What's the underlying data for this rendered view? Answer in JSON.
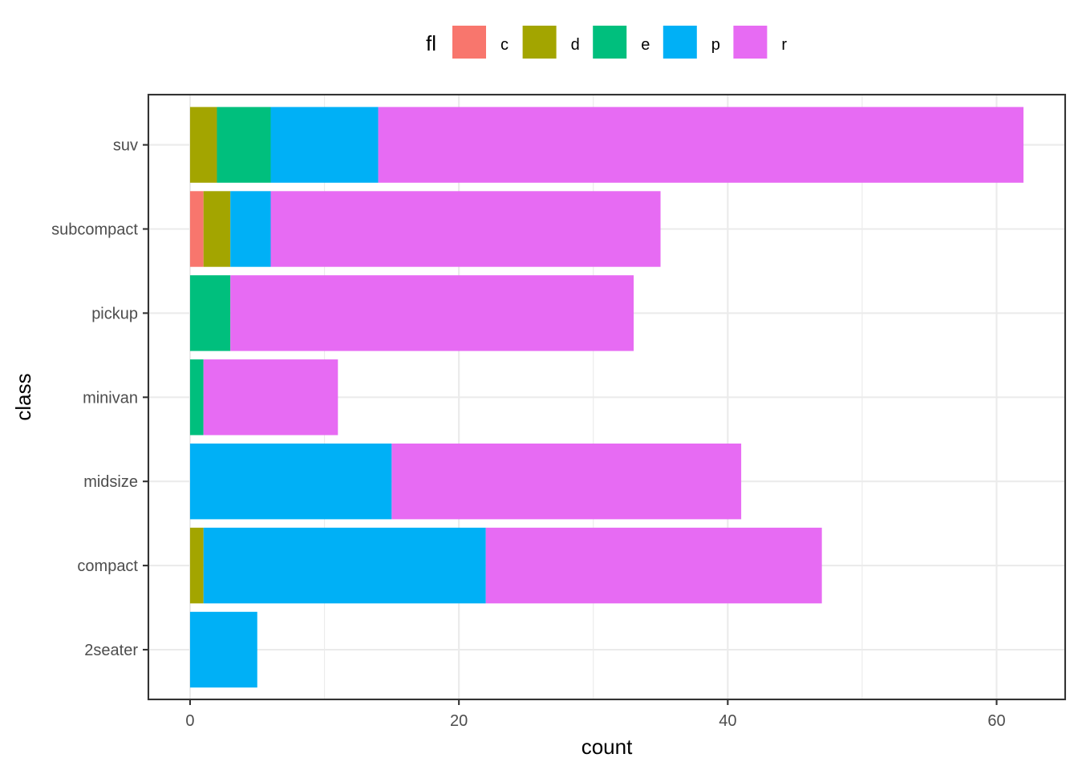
{
  "chart_data": {
    "type": "bar",
    "orientation": "horizontal",
    "stacked": true,
    "categories": [
      "2seater",
      "compact",
      "midsize",
      "minivan",
      "pickup",
      "subcompact",
      "suv"
    ],
    "series": [
      {
        "name": "c",
        "color": "#F8766D",
        "values": [
          0,
          0,
          0,
          0,
          0,
          1,
          0
        ]
      },
      {
        "name": "d",
        "color": "#A3A500",
        "values": [
          0,
          1,
          0,
          0,
          0,
          2,
          2
        ]
      },
      {
        "name": "e",
        "color": "#00BF7D",
        "values": [
          0,
          0,
          0,
          1,
          3,
          0,
          4
        ]
      },
      {
        "name": "p",
        "color": "#00B0F6",
        "values": [
          5,
          21,
          15,
          0,
          0,
          3,
          8
        ]
      },
      {
        "name": "r",
        "color": "#E76BF3",
        "values": [
          0,
          25,
          26,
          10,
          30,
          29,
          48
        ]
      }
    ],
    "xlabel": "count",
    "ylabel": "class",
    "xlim": [
      -3.1,
      65.1
    ],
    "xticks": [
      "0",
      "20",
      "40",
      "60"
    ],
    "xtick_values": [
      0,
      20,
      40,
      60
    ],
    "grid": true,
    "legend": {
      "title": "fl",
      "position": "top"
    }
  }
}
